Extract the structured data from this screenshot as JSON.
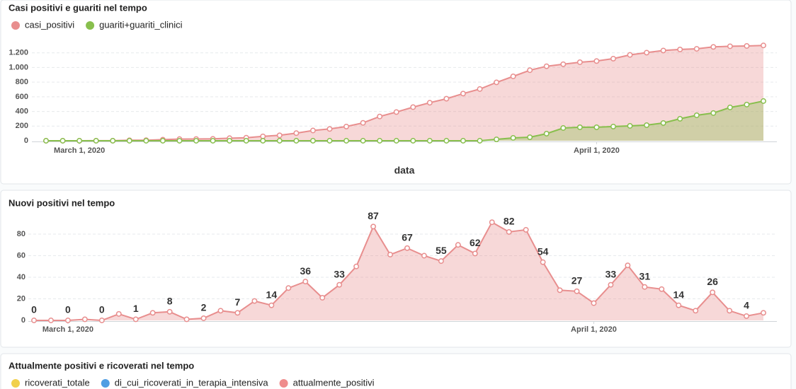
{
  "chart_data": [
    {
      "type": "area-line",
      "title": "Casi positivi e guariti nel tempo",
      "x_label": "data",
      "x": [
        "2020-02-28",
        "2020-02-29",
        "2020-03-01",
        "2020-03-02",
        "2020-03-03",
        "2020-03-04",
        "2020-03-05",
        "2020-03-06",
        "2020-03-07",
        "2020-03-08",
        "2020-03-09",
        "2020-03-10",
        "2020-03-11",
        "2020-03-12",
        "2020-03-13",
        "2020-03-14",
        "2020-03-15",
        "2020-03-16",
        "2020-03-17",
        "2020-03-18",
        "2020-03-19",
        "2020-03-20",
        "2020-03-21",
        "2020-03-22",
        "2020-03-23",
        "2020-03-24",
        "2020-03-25",
        "2020-03-26",
        "2020-03-27",
        "2020-03-28",
        "2020-03-29",
        "2020-03-30",
        "2020-03-31",
        "2020-04-01",
        "2020-04-02",
        "2020-04-03",
        "2020-04-04",
        "2020-04-05",
        "2020-04-06",
        "2020-04-07",
        "2020-04-08",
        "2020-04-09",
        "2020-04-10",
        "2020-04-11"
      ],
      "xticks": [
        {
          "value": "2020-03-01",
          "label": "March 1, 2020"
        },
        {
          "value": "2020-04-01",
          "label": "April 1, 2020"
        }
      ],
      "series": [
        {
          "name": "casi_positivi",
          "color": "#e88e8e",
          "values": [
            0,
            0,
            0,
            1,
            1,
            7,
            8,
            15,
            23,
            24,
            26,
            35,
            42,
            60,
            74,
            104,
            140,
            161,
            194,
            244,
            331,
            392,
            459,
            519,
            574,
            644,
            706,
            797,
            879,
            963,
            1017,
            1045,
            1072,
            1088,
            1121,
            1172,
            1203,
            1232,
            1246,
            1255,
            1281,
            1290,
            1294,
            1301
          ]
        },
        {
          "name": "guariti+guariti_clinici",
          "color": "#88bf4d",
          "values": [
            0,
            0,
            0,
            0,
            0,
            0,
            0,
            0,
            0,
            0,
            0,
            0,
            0,
            0,
            0,
            0,
            0,
            0,
            0,
            0,
            0,
            0,
            0,
            0,
            0,
            0,
            0,
            19,
            39,
            48,
            97,
            174,
            184,
            184,
            194,
            203,
            213,
            242,
            300,
            348,
            378,
            455,
            494,
            542
          ]
        }
      ],
      "ylim": [
        0,
        1400
      ],
      "yticks": [
        0,
        200,
        400,
        600,
        800,
        {
          "value": 1000,
          "label": "1.000"
        },
        {
          "value": 1200,
          "label": "1.200"
        }
      ],
      "grid": true
    },
    {
      "type": "area-line",
      "title": "Nuovi positivi nel tempo",
      "x": [
        "2020-02-28",
        "2020-02-29",
        "2020-03-01",
        "2020-03-02",
        "2020-03-03",
        "2020-03-04",
        "2020-03-05",
        "2020-03-06",
        "2020-03-07",
        "2020-03-08",
        "2020-03-09",
        "2020-03-10",
        "2020-03-11",
        "2020-03-12",
        "2020-03-13",
        "2020-03-14",
        "2020-03-15",
        "2020-03-16",
        "2020-03-17",
        "2020-03-18",
        "2020-03-19",
        "2020-03-20",
        "2020-03-21",
        "2020-03-22",
        "2020-03-23",
        "2020-03-24",
        "2020-03-25",
        "2020-03-26",
        "2020-03-27",
        "2020-03-28",
        "2020-03-29",
        "2020-03-30",
        "2020-03-31",
        "2020-04-01",
        "2020-04-02",
        "2020-04-03",
        "2020-04-04",
        "2020-04-05",
        "2020-04-06",
        "2020-04-07",
        "2020-04-08",
        "2020-04-09",
        "2020-04-10",
        "2020-04-11"
      ],
      "xticks": [
        {
          "value": "2020-03-01",
          "label": "March 1, 2020"
        },
        {
          "value": "2020-04-01",
          "label": "April 1, 2020"
        }
      ],
      "series": [
        {
          "color": "#e88e8e",
          "values": [
            0,
            0,
            0,
            1,
            0,
            6,
            1,
            7,
            8,
            1,
            2,
            9,
            7,
            18,
            14,
            30,
            36,
            21,
            33,
            50,
            87,
            61,
            67,
            60,
            55,
            70,
            62,
            91,
            82,
            84,
            54,
            28,
            27,
            16,
            33,
            51,
            31,
            29,
            14,
            9,
            26,
            9,
            4,
            7
          ]
        }
      ],
      "data_labels_every": 2,
      "ylim": [
        0,
        100
      ],
      "yticks": [
        0,
        20,
        40,
        60,
        80
      ],
      "grid": true
    },
    {
      "type": "line",
      "title": "Attualmente positivi e ricoverati nel tempo",
      "series": [
        {
          "name": "ricoverati_totale",
          "color": "#f1d04c"
        },
        {
          "name": "di_cui_ricoverati_in_terapia_intensiva",
          "color": "#509ee3"
        },
        {
          "name": "attualmente_positivi",
          "color": "#ef8c8c"
        }
      ]
    }
  ]
}
